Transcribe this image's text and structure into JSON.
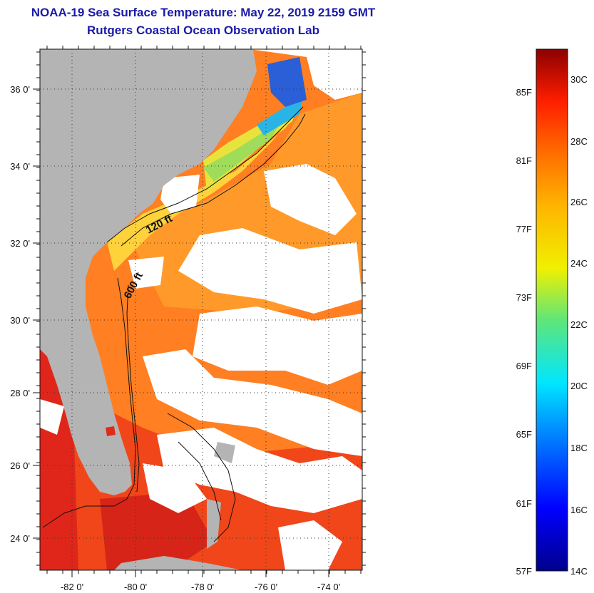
{
  "header": {
    "title": "NOAA-19 Sea Surface Temperature:  May 22, 2019 2159 GMT",
    "subtitle": "Rutgers Coastal Ocean Observation Lab"
  },
  "map": {
    "lat_labels": [
      "36 0'",
      "34 0'",
      "32 0'",
      "30 0'",
      "28 0'",
      "26 0'",
      "24 0'"
    ],
    "lon_labels": [
      "-82 0'",
      "-80 0'",
      "-78 0'",
      "-76 0'",
      "-74 0'"
    ],
    "contours": [
      "120 ft",
      "600 ft"
    ],
    "colors": {
      "land": "#b4b4b4",
      "cloud": "#ffffff",
      "warm_water": "#ff7a1a",
      "hot_water": "#e8241a",
      "coastal_water": "#f9d23a",
      "cold_water": "#2a5fd8"
    }
  },
  "colorbar": {
    "fahrenheit_labels": [
      "85F",
      "81F",
      "77F",
      "73F",
      "69F",
      "65F",
      "61F",
      "57F"
    ],
    "celsius_labels": [
      "30C",
      "28C",
      "26C",
      "24C",
      "22C",
      "20C",
      "18C",
      "16C",
      "14C"
    ]
  }
}
